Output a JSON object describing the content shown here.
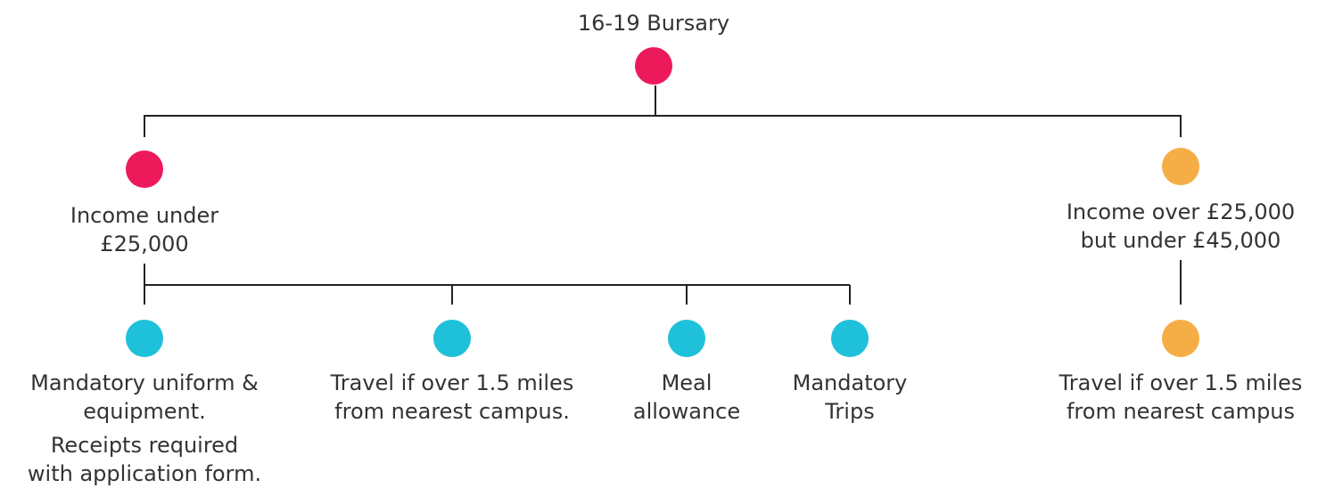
{
  "nodes": [
    {
      "label": [
        "16-19 Bursary"
      ]
    },
    {
      "label": [
        "Income under",
        "£25,000"
      ]
    },
    {
      "label": [
        "Income over £25,000",
        "but under £45,000"
      ]
    },
    {
      "label": [
        "Mandatory uniform &",
        "equipment."
      ],
      "note": [
        "Receipts required",
        "with application form."
      ]
    },
    {
      "label": [
        "Travel if over 1.5 miles",
        "from nearest campus."
      ]
    },
    {
      "label": [
        "Meal",
        "allowance"
      ]
    },
    {
      "label": [
        "Mandatory",
        "Trips"
      ]
    },
    {
      "label": [
        "Travel if over 1.5 miles",
        "from nearest campus"
      ]
    }
  ]
}
